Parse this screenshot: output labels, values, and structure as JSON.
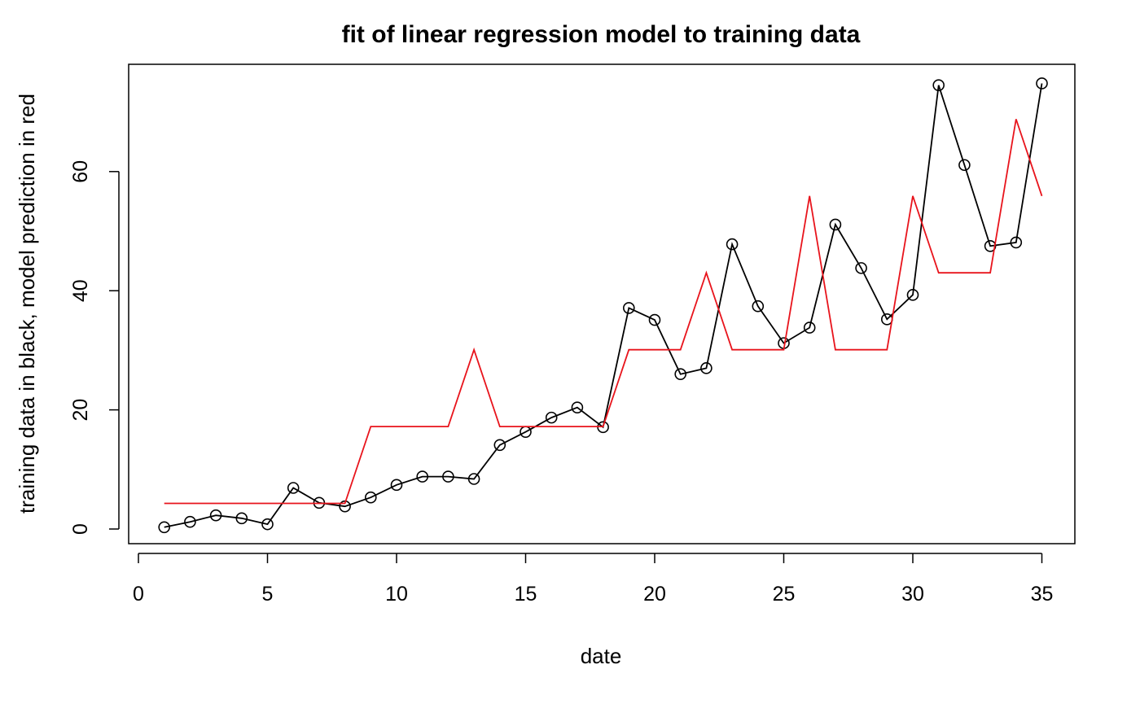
{
  "chart_data": {
    "type": "line",
    "title": "fit of linear regression model to training data",
    "xlabel": "date",
    "ylabel": "training data in black, model prediction in red",
    "xlim": [
      0,
      35
    ],
    "ylim": [
      0,
      75
    ],
    "x_ticks": [
      0,
      5,
      10,
      15,
      20,
      25,
      30,
      35
    ],
    "y_ticks": [
      0,
      20,
      40,
      60
    ],
    "grid": false,
    "legend": "none",
    "series": [
      {
        "color": "#000000",
        "marker": "open-circle",
        "x": [
          1,
          2,
          3,
          4,
          5,
          6,
          7,
          8,
          9,
          10,
          11,
          12,
          13,
          14,
          15,
          16,
          17,
          18,
          19,
          20,
          21,
          22,
          23,
          24,
          25,
          26,
          27,
          28,
          29,
          30,
          31,
          32,
          33,
          34,
          35
        ],
        "values": [
          0.3,
          1.2,
          2.3,
          1.8,
          0.8,
          6.9,
          4.4,
          3.8,
          5.3,
          7.4,
          8.8,
          8.8,
          8.4,
          14.1,
          16.3,
          18.7,
          20.4,
          17.1,
          37.1,
          35.1,
          26.0,
          27.0,
          47.8,
          37.4,
          31.2,
          33.8,
          51.1,
          43.8,
          35.2,
          39.3,
          74.5,
          61.1,
          47.5,
          48.1,
          74.8
        ]
      },
      {
        "color": "#e8141c",
        "marker": "none",
        "x": [
          1,
          2,
          3,
          4,
          5,
          6,
          7,
          8,
          9,
          10,
          11,
          12,
          13,
          14,
          15,
          16,
          17,
          18,
          19,
          20,
          21,
          22,
          23,
          24,
          25,
          26,
          27,
          28,
          29,
          30,
          31,
          32,
          33,
          34,
          35
        ],
        "values": [
          4.3,
          4.3,
          4.3,
          4.3,
          4.3,
          4.3,
          4.3,
          4.3,
          17.2,
          17.2,
          17.2,
          17.2,
          30.1,
          17.2,
          17.2,
          17.2,
          17.2,
          17.2,
          30.1,
          30.1,
          30.1,
          43.0,
          30.1,
          30.1,
          30.1,
          55.9,
          30.1,
          30.1,
          30.1,
          55.9,
          43.0,
          43.0,
          43.0,
          68.8,
          55.9
        ]
      }
    ]
  }
}
